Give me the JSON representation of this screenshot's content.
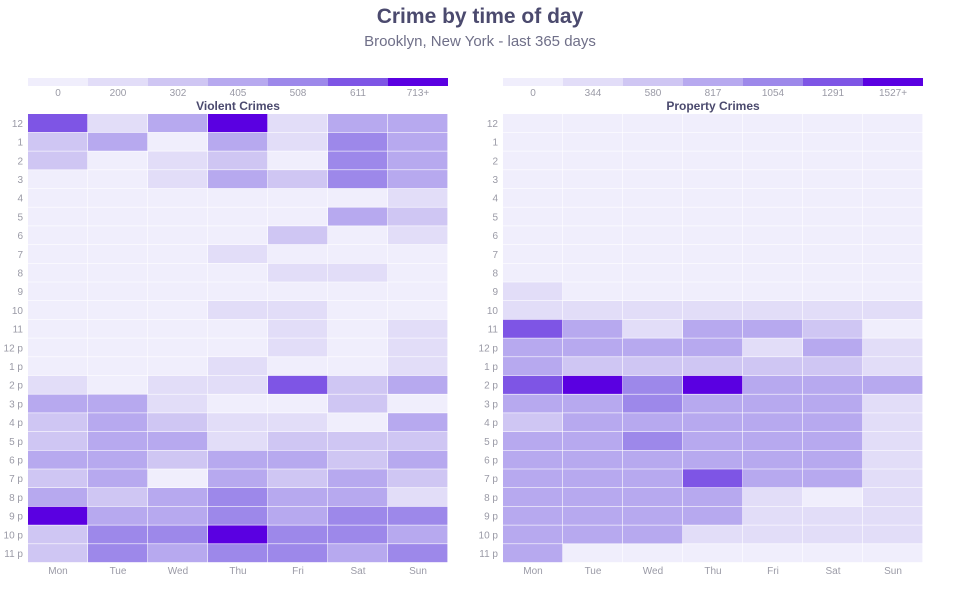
{
  "page": {
    "title": "Crime by time of day",
    "subtitle": "Brooklyn, New York - last 365 days"
  },
  "colors": {
    "scale": [
      "#f0eefc",
      "#e2ddf8",
      "#cfc6f3",
      "#b7a9ef",
      "#9d88ea",
      "#7e55e5",
      "#5a00e1"
    ],
    "label": "#9a9aa6",
    "panel_title": "#4b4a6e"
  },
  "chart_data": [
    {
      "type": "heatmap",
      "title": "Violent Crimes",
      "x": [
        "Mon",
        "Tue",
        "Wed",
        "Thu",
        "Fri",
        "Sat",
        "Sun"
      ],
      "y": [
        "12",
        "1",
        "2",
        "3",
        "4",
        "5",
        "6",
        "7",
        "8",
        "9",
        "10",
        "11",
        "12 p",
        "1 p",
        "2 p",
        "3 p",
        "4 p",
        "5 p",
        "6 p",
        "7 p",
        "8 p",
        "9 p",
        "10 p",
        "11 p"
      ],
      "legend": {
        "thresholds": [
          0,
          200,
          302,
          405,
          508,
          611,
          713
        ],
        "labels": [
          "0",
          "200",
          "302",
          "405",
          "508",
          "611",
          "713+"
        ]
      },
      "values": [
        [
          640,
          260,
          420,
          740,
          290,
          450,
          470
        ],
        [
          400,
          480,
          160,
          420,
          200,
          510,
          420
        ],
        [
          380,
          190,
          260,
          400,
          100,
          520,
          470
        ],
        [
          130,
          140,
          260,
          440,
          330,
          540,
          410
        ],
        [
          100,
          110,
          100,
          110,
          110,
          120,
          240
        ],
        [
          80,
          80,
          80,
          90,
          90,
          410,
          390
        ],
        [
          100,
          130,
          70,
          80,
          390,
          130,
          240
        ],
        [
          80,
          80,
          90,
          270,
          100,
          100,
          100
        ],
        [
          90,
          90,
          130,
          120,
          250,
          280,
          100
        ],
        [
          100,
          100,
          120,
          120,
          110,
          120,
          100
        ],
        [
          150,
          130,
          140,
          220,
          240,
          140,
          140
        ],
        [
          80,
          120,
          120,
          130,
          250,
          90,
          250
        ],
        [
          120,
          130,
          90,
          100,
          250,
          120,
          250
        ],
        [
          110,
          110,
          130,
          220,
          180,
          140,
          280
        ],
        [
          260,
          130,
          250,
          260,
          620,
          400,
          420
        ],
        [
          470,
          480,
          270,
          150,
          190,
          350,
          140
        ],
        [
          400,
          470,
          370,
          270,
          270,
          80,
          460
        ],
        [
          400,
          480,
          460,
          270,
          390,
          400,
          380
        ],
        [
          420,
          480,
          370,
          440,
          430,
          390,
          440
        ],
        [
          400,
          480,
          80,
          420,
          400,
          440,
          390
        ],
        [
          470,
          370,
          470,
          580,
          450,
          450,
          250
        ],
        [
          730,
          430,
          500,
          590,
          430,
          580,
          580
        ],
        [
          370,
          520,
          580,
          760,
          570,
          510,
          420
        ],
        [
          380,
          600,
          500,
          580,
          520,
          430,
          590
        ]
      ]
    },
    {
      "type": "heatmap",
      "title": "Property Crimes",
      "x": [
        "Mon",
        "Tue",
        "Wed",
        "Thu",
        "Fri",
        "Sat",
        "Sun"
      ],
      "y": [
        "12",
        "1",
        "2",
        "3",
        "4",
        "5",
        "6",
        "7",
        "8",
        "9",
        "10",
        "11",
        "12 p",
        "1 p",
        "2 p",
        "3 p",
        "4 p",
        "5 p",
        "6 p",
        "7 p",
        "8 p",
        "9 p",
        "10 p",
        "11 p"
      ],
      "legend": {
        "thresholds": [
          0,
          344,
          580,
          817,
          1054,
          1291,
          1527
        ],
        "labels": [
          "0",
          "344",
          "580",
          "817",
          "1054",
          "1291",
          "1527+"
        ]
      },
      "values": [
        [
          120,
          120,
          100,
          100,
          120,
          110,
          150
        ],
        [
          140,
          120,
          110,
          110,
          110,
          140,
          160
        ],
        [
          160,
          100,
          100,
          110,
          100,
          160,
          160
        ],
        [
          90,
          90,
          90,
          100,
          90,
          170,
          80
        ],
        [
          70,
          70,
          70,
          70,
          70,
          80,
          80
        ],
        [
          60,
          60,
          60,
          160,
          60,
          70,
          70
        ],
        [
          60,
          60,
          60,
          60,
          60,
          70,
          70
        ],
        [
          60,
          60,
          60,
          60,
          60,
          60,
          60
        ],
        [
          70,
          70,
          70,
          150,
          160,
          80,
          70
        ],
        [
          480,
          150,
          150,
          160,
          170,
          250,
          150
        ],
        [
          460,
          380,
          480,
          480,
          460,
          350,
          480
        ],
        [
          1300,
          830,
          520,
          900,
          850,
          650,
          190
        ],
        [
          900,
          960,
          860,
          880,
          520,
          840,
          550
        ],
        [
          850,
          700,
          800,
          760,
          800,
          700,
          550
        ],
        [
          1300,
          1550,
          1060,
          1550,
          1000,
          1000,
          1000
        ],
        [
          1000,
          850,
          1060,
          900,
          850,
          820,
          550
        ],
        [
          600,
          850,
          850,
          900,
          850,
          850,
          550
        ],
        [
          850,
          850,
          1060,
          900,
          850,
          850,
          550
        ],
        [
          1000,
          1000,
          1000,
          950,
          900,
          1000,
          550
        ],
        [
          1000,
          850,
          1000,
          1300,
          950,
          950,
          550
        ],
        [
          850,
          1000,
          900,
          850,
          550,
          250,
          550
        ],
        [
          1000,
          850,
          1000,
          850,
          550,
          550,
          550
        ],
        [
          850,
          850,
          1000,
          550,
          500,
          400,
          550
        ],
        [
          850,
          200,
          200,
          200,
          200,
          200,
          200
        ]
      ]
    }
  ]
}
